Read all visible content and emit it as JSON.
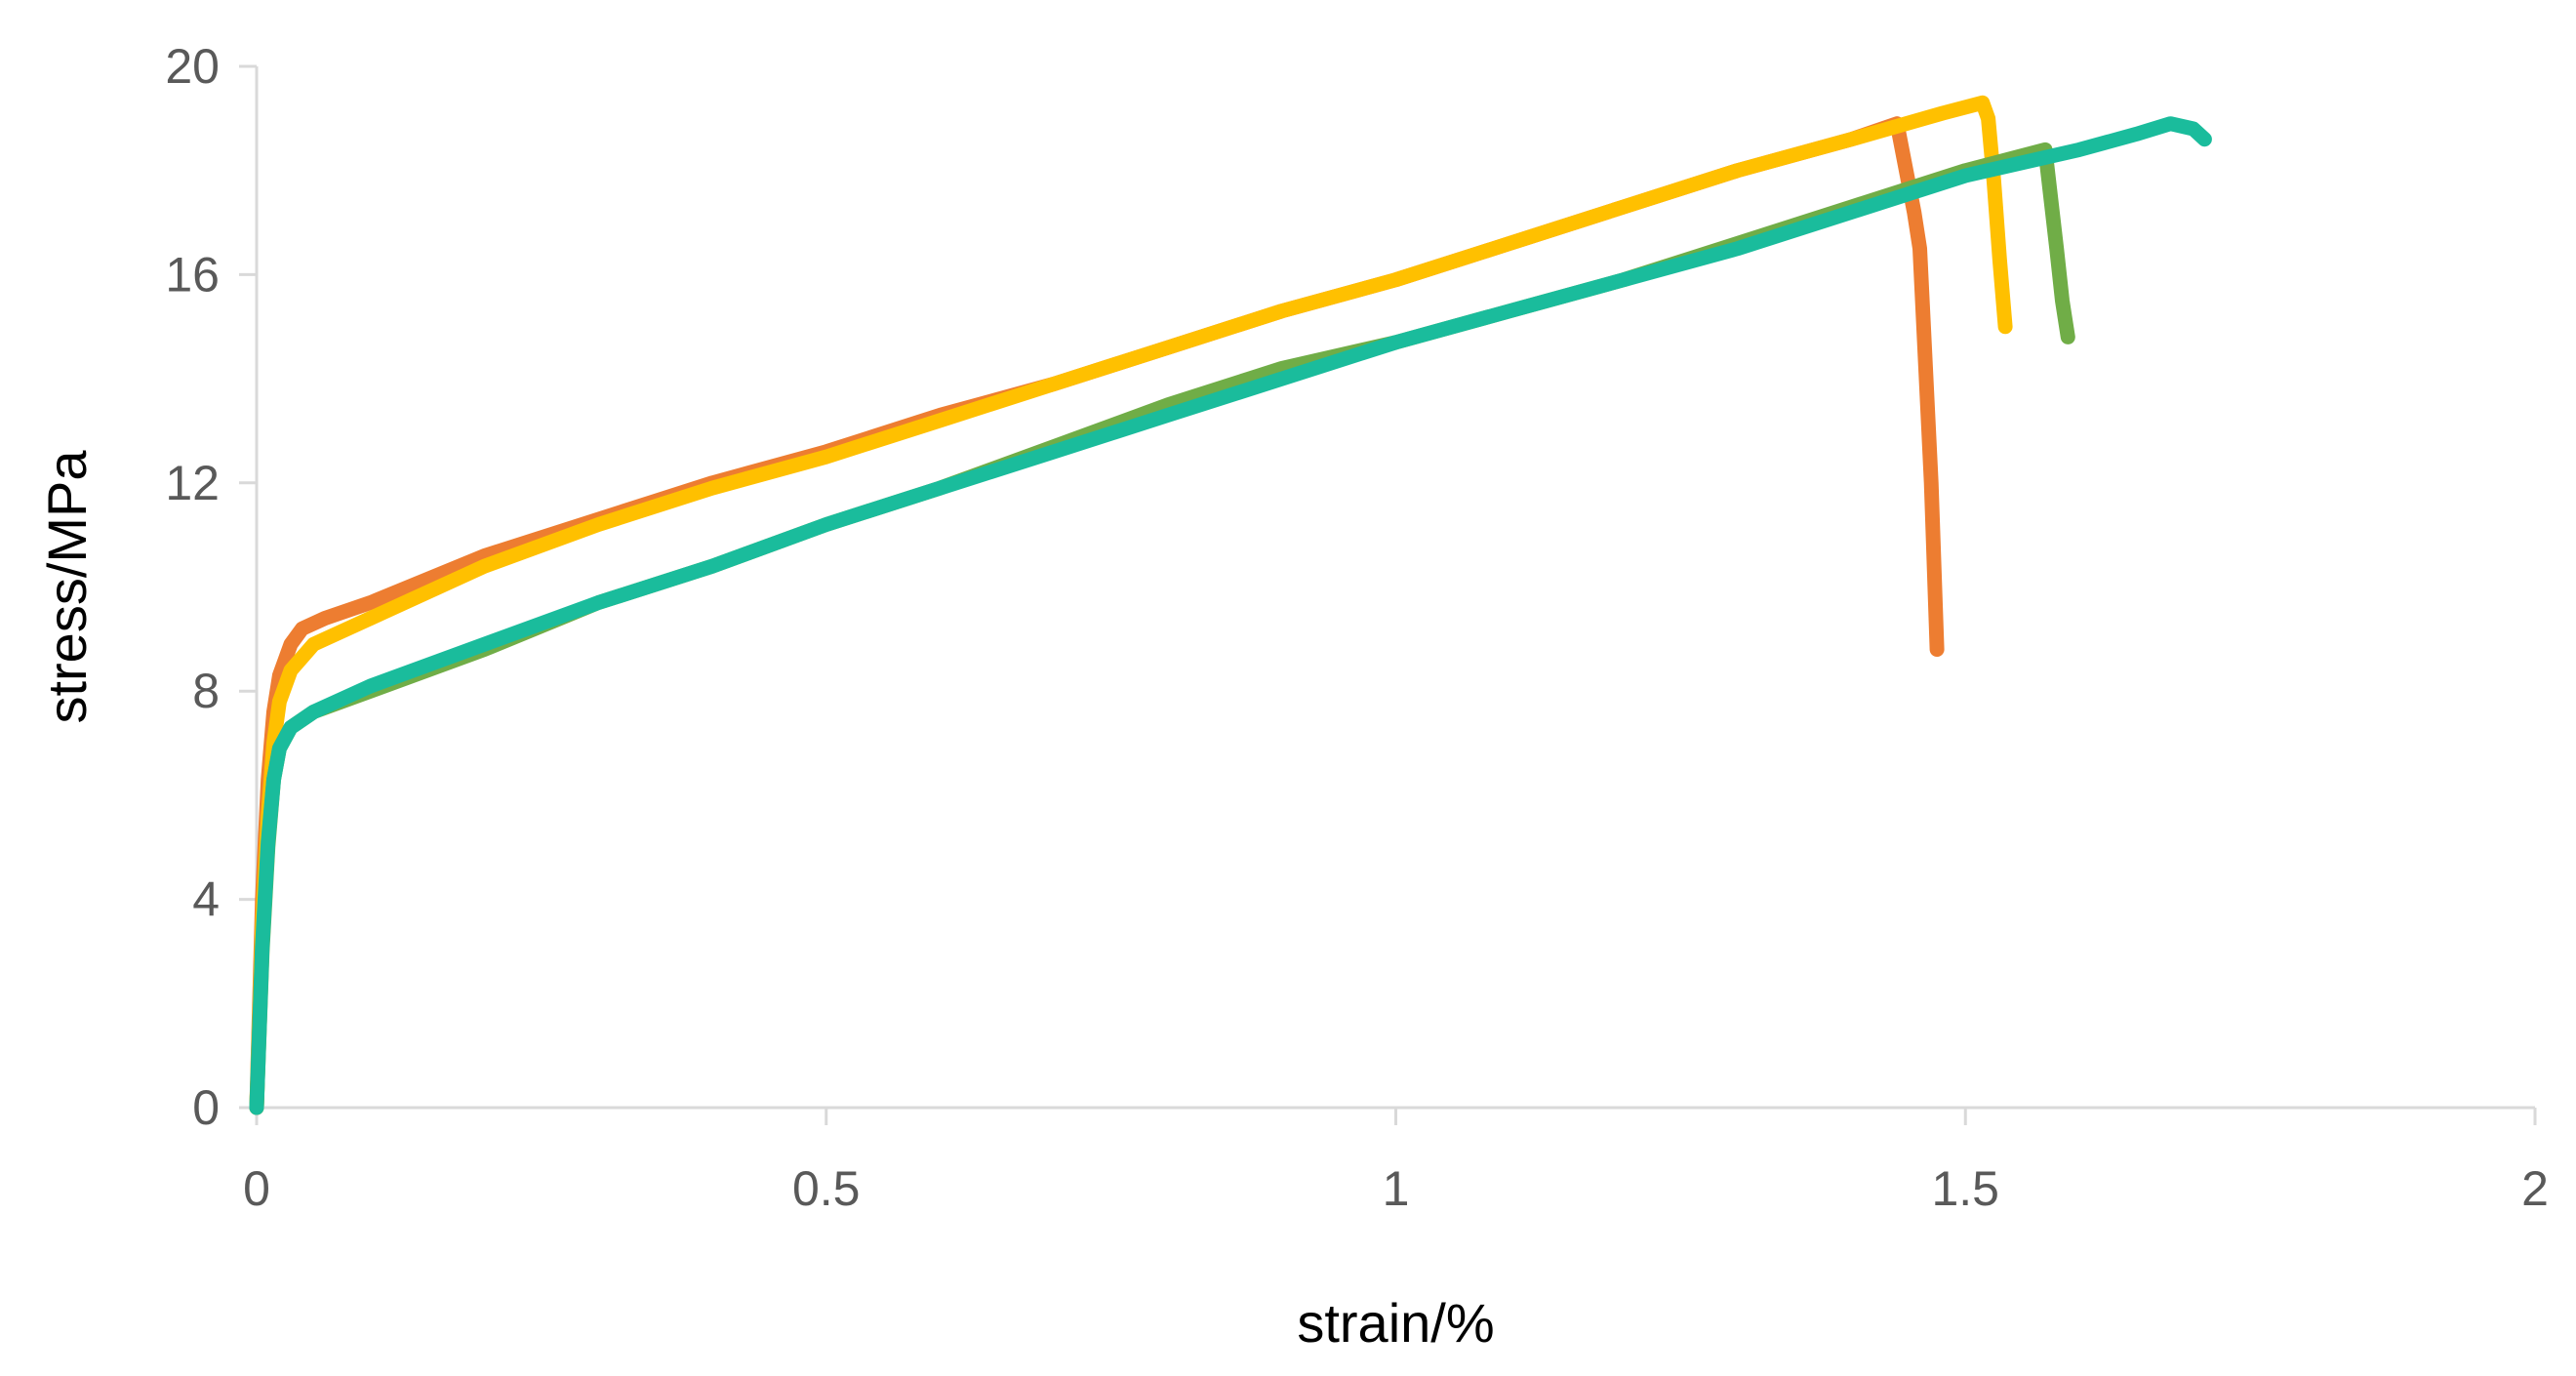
{
  "chart_data": {
    "type": "line",
    "title": "",
    "xlabel": "strain/%",
    "ylabel": "stress/MPa",
    "xlim": [
      0,
      2
    ],
    "ylim": [
      0,
      20
    ],
    "x_ticks": [
      0,
      0.5,
      1,
      1.5,
      2
    ],
    "x_tick_labels": [
      "0",
      "0.5",
      "1",
      "1.5",
      "2"
    ],
    "y_ticks": [
      0,
      4,
      8,
      12,
      16,
      20
    ],
    "y_tick_labels": [
      "0",
      "4",
      "8",
      "12",
      "16",
      "20"
    ],
    "grid": false,
    "legend": "none",
    "series": [
      {
        "color": "#ED7D31",
        "x": [
          0,
          0.005,
          0.01,
          0.015,
          0.02,
          0.03,
          0.04,
          0.06,
          0.1,
          0.2,
          0.3,
          0.4,
          0.5,
          0.6,
          0.7,
          0.8,
          0.9,
          1.0,
          1.1,
          1.2,
          1.3,
          1.4,
          1.44,
          1.455,
          1.46,
          1.47,
          1.475
        ],
        "y": [
          0,
          4.0,
          6.3,
          7.6,
          8.3,
          8.9,
          9.2,
          9.4,
          9.7,
          10.6,
          11.3,
          12.0,
          12.6,
          13.3,
          13.9,
          14.6,
          15.3,
          15.9,
          16.6,
          17.3,
          18.0,
          18.6,
          18.9,
          17.2,
          16.5,
          12.0,
          8.8
        ]
      },
      {
        "color": "#FFC000",
        "x": [
          0,
          0.005,
          0.01,
          0.015,
          0.02,
          0.03,
          0.05,
          0.1,
          0.2,
          0.3,
          0.4,
          0.5,
          0.6,
          0.7,
          0.8,
          0.9,
          1.0,
          1.1,
          1.2,
          1.3,
          1.4,
          1.48,
          1.515,
          1.52,
          1.525,
          1.53,
          1.535
        ],
        "y": [
          0,
          3.5,
          5.6,
          7.0,
          7.8,
          8.4,
          8.9,
          9.4,
          10.4,
          11.2,
          11.9,
          12.5,
          13.2,
          13.9,
          14.6,
          15.3,
          15.9,
          16.6,
          17.3,
          18.0,
          18.6,
          19.1,
          19.3,
          19.0,
          17.8,
          16.3,
          15.0
        ]
      },
      {
        "color": "#70AD47",
        "x": [
          0,
          0.005,
          0.01,
          0.015,
          0.02,
          0.03,
          0.05,
          0.1,
          0.2,
          0.3,
          0.4,
          0.5,
          0.6,
          0.7,
          0.8,
          0.9,
          1.0,
          1.1,
          1.2,
          1.3,
          1.4,
          1.5,
          1.57,
          1.58,
          1.585,
          1.59
        ],
        "y": [
          0,
          3.0,
          5.0,
          6.3,
          6.9,
          7.3,
          7.6,
          8.0,
          8.8,
          9.7,
          10.4,
          11.2,
          11.9,
          12.7,
          13.5,
          14.2,
          14.7,
          15.3,
          15.9,
          16.6,
          17.3,
          18.0,
          18.4,
          16.5,
          15.5,
          14.8
        ]
      },
      {
        "color": "#1ABC9C",
        "x": [
          0,
          0.005,
          0.01,
          0.015,
          0.02,
          0.03,
          0.05,
          0.1,
          0.2,
          0.3,
          0.4,
          0.5,
          0.6,
          0.7,
          0.8,
          0.9,
          1.0,
          1.1,
          1.2,
          1.3,
          1.4,
          1.5,
          1.6,
          1.65,
          1.68,
          1.7,
          1.71
        ],
        "y": [
          0,
          3.1,
          5.1,
          6.3,
          6.9,
          7.3,
          7.6,
          8.1,
          8.9,
          9.7,
          10.4,
          11.2,
          11.9,
          12.6,
          13.3,
          14.0,
          14.7,
          15.3,
          15.9,
          16.5,
          17.2,
          17.9,
          18.4,
          18.7,
          18.9,
          18.8,
          18.6
        ]
      }
    ]
  }
}
